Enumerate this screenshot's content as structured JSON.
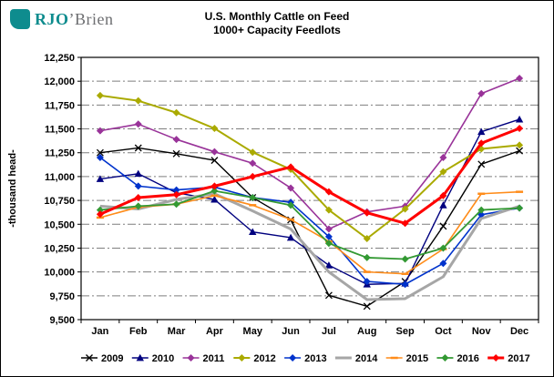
{
  "logo": {
    "brand_teal_text": "RJO",
    "brand_gray_text": "’Brien"
  },
  "colors": {
    "brand_teal": "#0E8C8E",
    "brand_gray": "#6D6E71",
    "gridline": "#7F7F7F",
    "axis": "#000000"
  },
  "chart_data": {
    "type": "line",
    "title": "U.S. Monthly Cattle on Feed",
    "subtitle": "1000+ Capacity Feedlots",
    "ylabel": "-thousand head-",
    "xlabel": "",
    "ylim": [
      9500,
      12250
    ],
    "ytick_step": 250,
    "yticks": [
      "9,500",
      "9,750",
      "10,000",
      "10,250",
      "10,500",
      "10,750",
      "11,000",
      "11,250",
      "11,500",
      "11,750",
      "12,000",
      "12,250"
    ],
    "grid": "horizontal dash-dot",
    "legend_position": "bottom",
    "categories": [
      "Jan",
      "Feb",
      "Mar",
      "Apr",
      "May",
      "Jun",
      "Jul",
      "Aug",
      "Sep",
      "Oct",
      "Nov",
      "Dec"
    ],
    "series": [
      {
        "name": "2009",
        "color": "#000000",
        "marker": "x",
        "width": 1.4,
        "values": [
          11250,
          11300,
          11240,
          11170,
          10780,
          10545,
          9755,
          9640,
          9900,
          10480,
          11130,
          11270
        ]
      },
      {
        "name": "2010",
        "color": "#00007F",
        "marker": "triangle",
        "width": 1.4,
        "values": [
          10975,
          11030,
          10830,
          10760,
          10420,
          10360,
          10070,
          9870,
          9880,
          10700,
          11470,
          11600
        ]
      },
      {
        "name": "2011",
        "color": "#993399",
        "marker": "diamond",
        "width": 1.6,
        "values": [
          11480,
          11550,
          11390,
          11260,
          11140,
          10880,
          10450,
          10630,
          10690,
          11200,
          11870,
          12030
        ]
      },
      {
        "name": "2012",
        "color": "#AAAA00",
        "marker": "diamond",
        "width": 2,
        "values": [
          11850,
          11795,
          11670,
          11505,
          11255,
          11075,
          10650,
          10350,
          10660,
          11050,
          11290,
          11330
        ]
      },
      {
        "name": "2013",
        "color": "#0033CC",
        "marker": "diamond",
        "width": 1.6,
        "values": [
          11200,
          10900,
          10860,
          10890,
          10780,
          10730,
          10370,
          9900,
          9870,
          10090,
          10600,
          10670
        ]
      },
      {
        "name": "2014",
        "color": "#A6A6A6",
        "marker": "none",
        "width": 3,
        "values": [
          10690,
          10660,
          10760,
          10820,
          10640,
          10450,
          10000,
          9710,
          9720,
          9950,
          10560,
          10690
        ]
      },
      {
        "name": "2015",
        "color": "#FF8C1A",
        "marker": "dash",
        "width": 1.6,
        "values": [
          10570,
          10680,
          10710,
          10800,
          10700,
          10550,
          10320,
          10000,
          9980,
          10240,
          10820,
          10840
        ]
      },
      {
        "name": "2016",
        "color": "#339933",
        "marker": "diamond",
        "width": 1.8,
        "values": [
          10650,
          10690,
          10710,
          10850,
          10780,
          10700,
          10300,
          10150,
          10135,
          10250,
          10650,
          10670
        ]
      },
      {
        "name": "2017",
        "color": "#FF0000",
        "marker": "diamond",
        "width": 3,
        "values": [
          10605,
          10780,
          10810,
          10900,
          11000,
          11100,
          10840,
          10620,
          10510,
          10800,
          11350,
          11505
        ]
      }
    ]
  }
}
